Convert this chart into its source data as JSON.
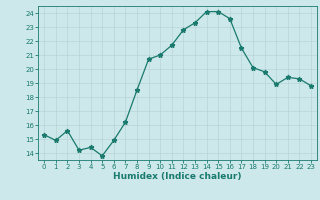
{
  "x": [
    0,
    1,
    2,
    3,
    4,
    5,
    6,
    7,
    8,
    9,
    10,
    11,
    12,
    13,
    14,
    15,
    16,
    17,
    18,
    19,
    20,
    21,
    22,
    23
  ],
  "y": [
    15.3,
    14.9,
    15.6,
    14.2,
    14.4,
    13.8,
    14.9,
    16.2,
    18.5,
    20.7,
    21.0,
    21.7,
    22.8,
    23.3,
    24.1,
    24.1,
    23.6,
    21.5,
    20.1,
    19.8,
    18.9,
    19.4,
    19.3,
    18.8
  ],
  "xlabel": "Humidex (Indice chaleur)",
  "ylim": [
    13.5,
    24.5
  ],
  "xlim": [
    -0.5,
    23.5
  ],
  "yticks": [
    14,
    15,
    16,
    17,
    18,
    19,
    20,
    21,
    22,
    23,
    24
  ],
  "xticks": [
    0,
    1,
    2,
    3,
    4,
    5,
    6,
    7,
    8,
    9,
    10,
    11,
    12,
    13,
    14,
    15,
    16,
    17,
    18,
    19,
    20,
    21,
    22,
    23
  ],
  "line_color": "#1a7a6e",
  "marker_color": "#1a7a6e",
  "bg_color": "#cce8ea",
  "grid_color": "#b8d4d6",
  "label_color": "#1a7a6e",
  "tick_color": "#1a7a6e",
  "tick_fontsize": 5.0,
  "xlabel_fontsize": 6.5,
  "marker_size": 3.5,
  "line_width": 0.9
}
